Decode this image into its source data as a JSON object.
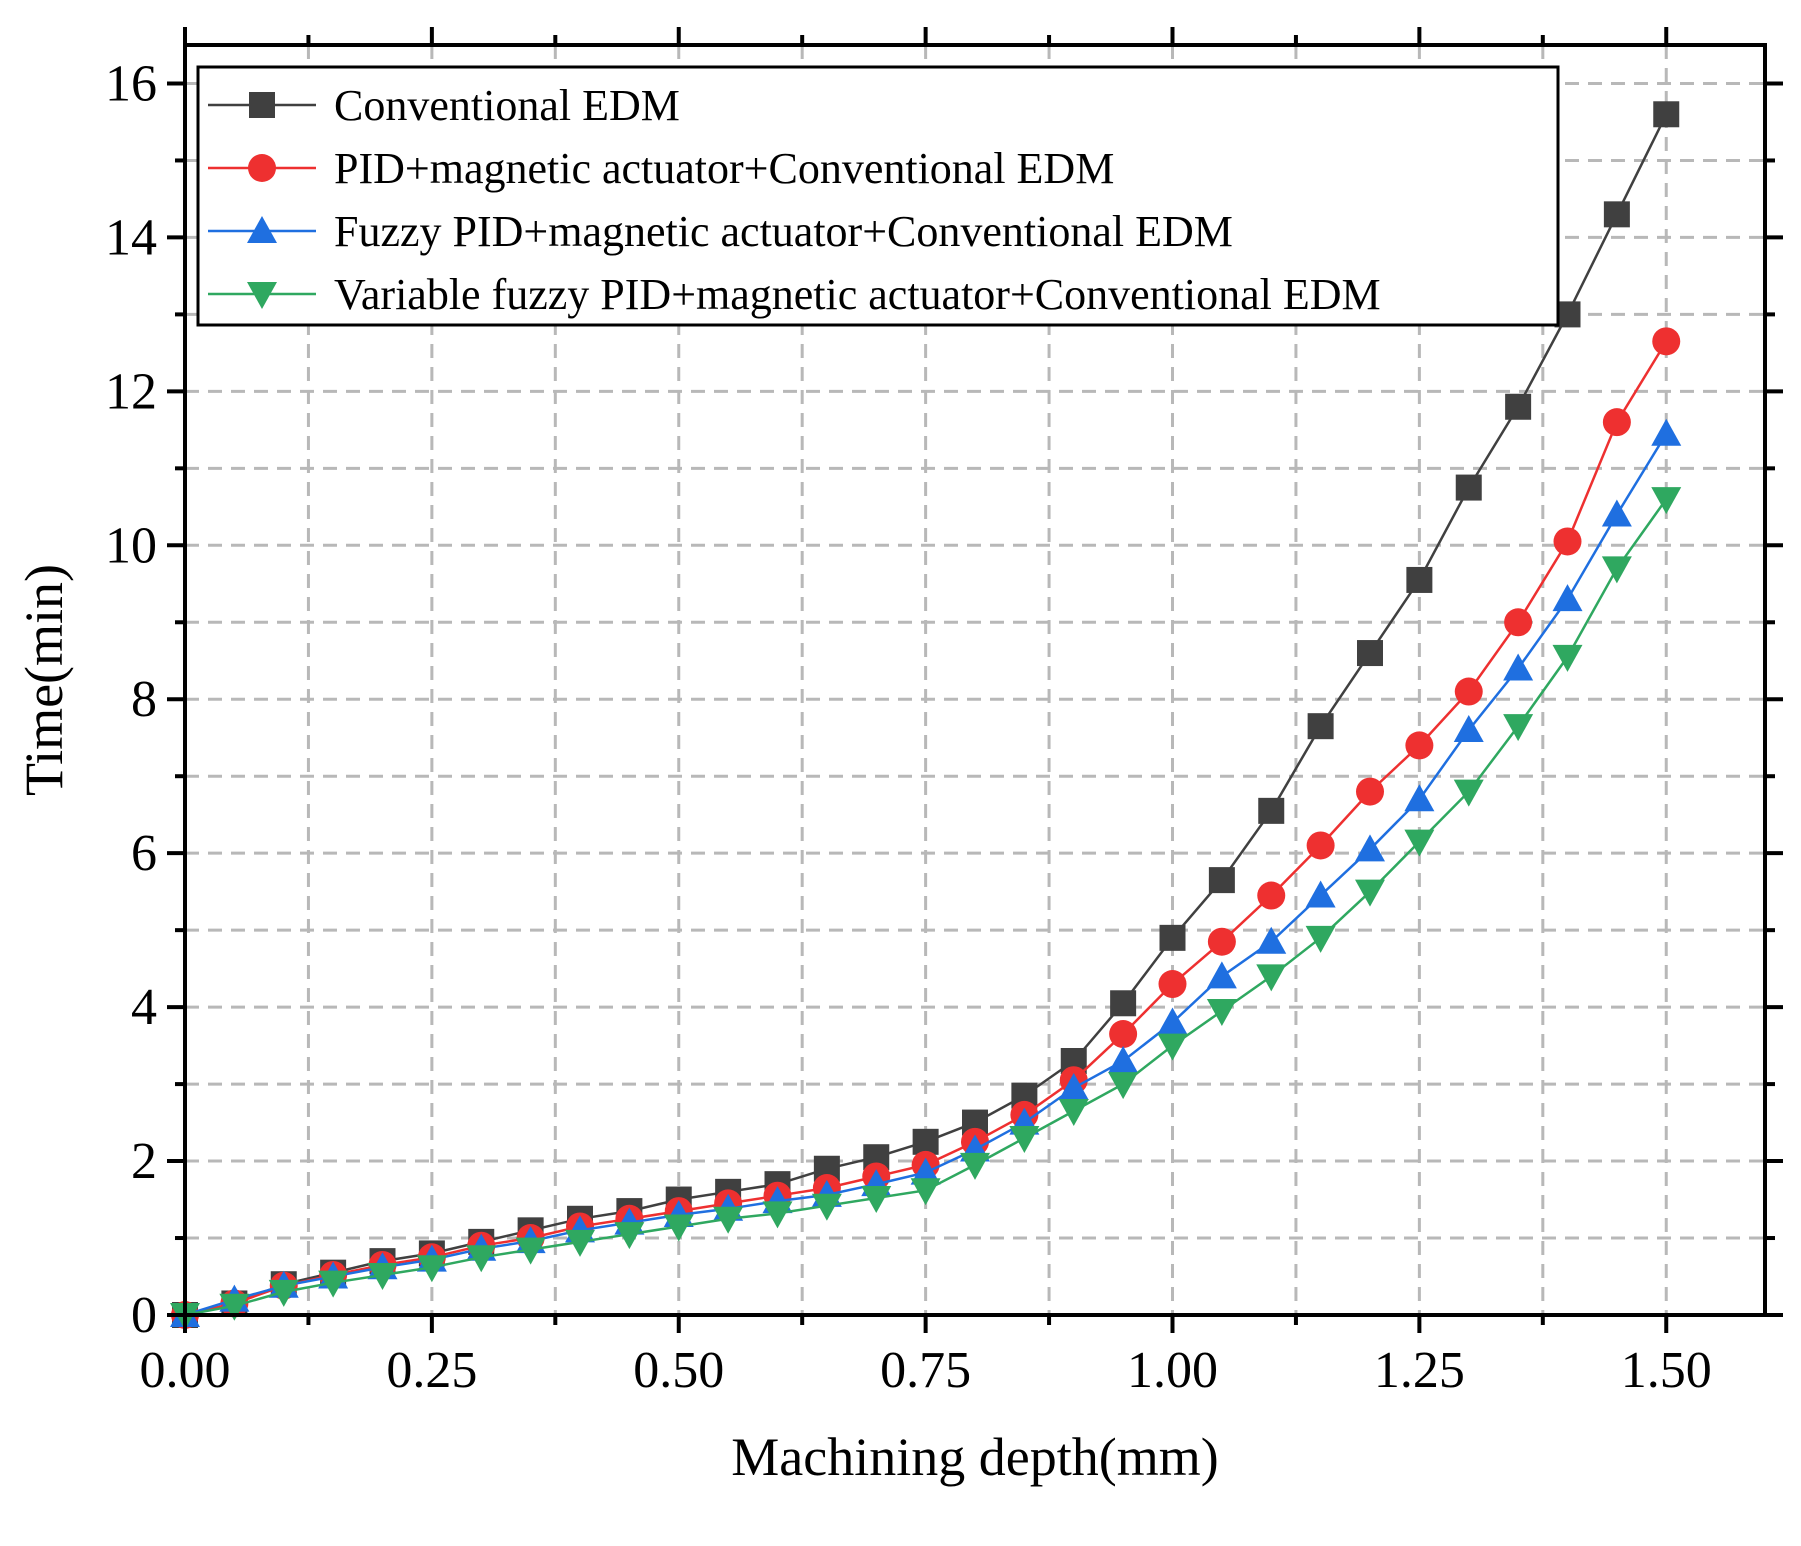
{
  "chart_data": {
    "type": "line",
    "title": "",
    "xlabel": "Machining depth(mm)",
    "ylabel": "Time(min)",
    "xlim": [
      0,
      1.6
    ],
    "ylim": [
      0,
      16.5
    ],
    "x_ticks": [
      "0.00",
      "0.25",
      "0.50",
      "0.75",
      "1.00",
      "1.25",
      "1.50"
    ],
    "x_tick_values": [
      0,
      0.25,
      0.5,
      0.75,
      1.0,
      1.25,
      1.5
    ],
    "y_ticks": [
      "0",
      "2",
      "4",
      "6",
      "8",
      "10",
      "12",
      "14",
      "16"
    ],
    "y_tick_values": [
      0,
      2,
      4,
      6,
      8,
      10,
      12,
      14,
      16
    ],
    "grid": true,
    "legend_position": "top-left",
    "x": [
      0,
      0.05,
      0.1,
      0.15,
      0.2,
      0.25,
      0.3,
      0.35,
      0.4,
      0.45,
      0.5,
      0.55,
      0.6,
      0.65,
      0.7,
      0.75,
      0.8,
      0.85,
      0.9,
      0.95,
      1.0,
      1.05,
      1.1,
      1.15,
      1.2,
      1.25,
      1.3,
      1.35,
      1.4,
      1.45,
      1.5
    ],
    "series": [
      {
        "name": "Conventional EDM",
        "color": "#404040",
        "marker": "square",
        "values": [
          0.0,
          0.15,
          0.4,
          0.55,
          0.7,
          0.8,
          0.95,
          1.1,
          1.25,
          1.35,
          1.5,
          1.6,
          1.7,
          1.9,
          2.05,
          2.25,
          2.5,
          2.85,
          3.3,
          4.05,
          4.9,
          5.65,
          6.55,
          7.65,
          8.6,
          9.55,
          10.75,
          11.8,
          13.0,
          14.3,
          15.6
        ]
      },
      {
        "name": "PID+magnetic actuator+Conventional EDM",
        "color": "#ee3030",
        "marker": "circle",
        "values": [
          0.0,
          0.15,
          0.38,
          0.52,
          0.65,
          0.75,
          0.9,
          1.0,
          1.15,
          1.25,
          1.35,
          1.45,
          1.55,
          1.65,
          1.8,
          1.95,
          2.25,
          2.6,
          3.05,
          3.65,
          4.3,
          4.85,
          5.45,
          6.1,
          6.8,
          7.4,
          8.1,
          9.0,
          10.05,
          11.6,
          12.65
        ]
      },
      {
        "name": "Fuzzy PID+magnetic actuator+Conventional EDM",
        "color": "#1f6fe0",
        "marker": "triangle-up",
        "values": [
          0.0,
          0.2,
          0.38,
          0.5,
          0.62,
          0.72,
          0.86,
          0.96,
          1.1,
          1.2,
          1.3,
          1.38,
          1.48,
          1.56,
          1.7,
          1.85,
          2.15,
          2.5,
          2.95,
          3.3,
          3.8,
          4.4,
          4.85,
          5.45,
          6.05,
          6.7,
          7.6,
          8.4,
          9.3,
          10.4,
          11.45
        ]
      },
      {
        "name": "Variable fuzzy PID+magnetic actuator+Conventional EDM",
        "color": "#2fa860",
        "marker": "triangle-down",
        "values": [
          0.0,
          0.12,
          0.3,
          0.42,
          0.52,
          0.62,
          0.75,
          0.85,
          0.95,
          1.05,
          1.15,
          1.25,
          1.32,
          1.42,
          1.52,
          1.62,
          1.95,
          2.3,
          2.65,
          3.0,
          3.5,
          3.95,
          4.4,
          4.9,
          5.5,
          6.15,
          6.8,
          7.65,
          8.55,
          9.7,
          10.6
        ]
      }
    ]
  }
}
